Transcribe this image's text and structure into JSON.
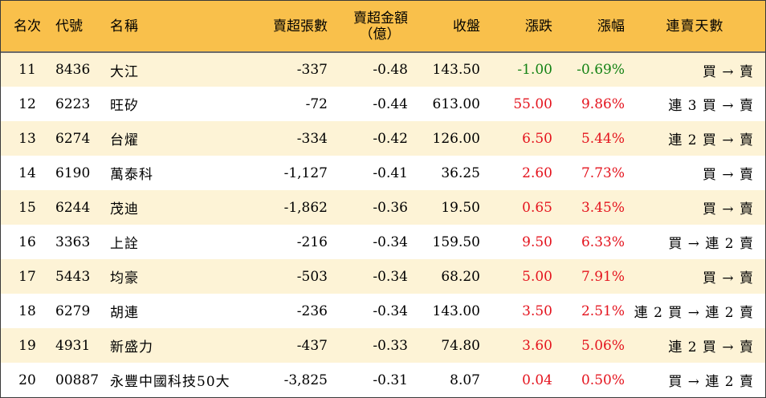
{
  "columns": {
    "rank": "名次",
    "code": "代號",
    "name": "名稱",
    "net_sell_lots": "賣超張數",
    "net_sell_amount": "賣超金額",
    "net_sell_amount_unit": "（億）",
    "close": "收盤",
    "change": "漲跌",
    "change_pct": "漲幅",
    "streak": "連賣天數"
  },
  "colors": {
    "header_bg": "#f9c04b",
    "odd_row_bg": "#fdf3d6",
    "even_row_bg": "#ffffff",
    "up": "#e4141e",
    "down": "#148214"
  },
  "rows": [
    {
      "rank": "11",
      "code": "8436",
      "name": "大江",
      "lots": "-337",
      "amount": "-0.48",
      "close": "143.50",
      "change": "-1.00",
      "pct": "-0.69%",
      "dir": "down",
      "streak": "買 → 賣"
    },
    {
      "rank": "12",
      "code": "6223",
      "name": "旺矽",
      "lots": "-72",
      "amount": "-0.44",
      "close": "613.00",
      "change": "55.00",
      "pct": "9.86%",
      "dir": "up",
      "streak": "連 3 買 → 賣"
    },
    {
      "rank": "13",
      "code": "6274",
      "name": "台燿",
      "lots": "-334",
      "amount": "-0.42",
      "close": "126.00",
      "change": "6.50",
      "pct": "5.44%",
      "dir": "up",
      "streak": "連 2 買 → 賣"
    },
    {
      "rank": "14",
      "code": "6190",
      "name": "萬泰科",
      "lots": "-1,127",
      "amount": "-0.41",
      "close": "36.25",
      "change": "2.60",
      "pct": "7.73%",
      "dir": "up",
      "streak": "買 → 賣"
    },
    {
      "rank": "15",
      "code": "6244",
      "name": "茂迪",
      "lots": "-1,862",
      "amount": "-0.36",
      "close": "19.50",
      "change": "0.65",
      "pct": "3.45%",
      "dir": "up",
      "streak": "買 → 賣"
    },
    {
      "rank": "16",
      "code": "3363",
      "name": "上詮",
      "lots": "-216",
      "amount": "-0.34",
      "close": "159.50",
      "change": "9.50",
      "pct": "6.33%",
      "dir": "up",
      "streak": "買 → 連 2 賣"
    },
    {
      "rank": "17",
      "code": "5443",
      "name": "均豪",
      "lots": "-503",
      "amount": "-0.34",
      "close": "68.20",
      "change": "5.00",
      "pct": "7.91%",
      "dir": "up",
      "streak": "買 → 賣"
    },
    {
      "rank": "18",
      "code": "6279",
      "name": "胡連",
      "lots": "-236",
      "amount": "-0.34",
      "close": "143.00",
      "change": "3.50",
      "pct": "2.51%",
      "dir": "up",
      "streak": "連 2 買 → 連 2 賣"
    },
    {
      "rank": "19",
      "code": "4931",
      "name": "新盛力",
      "lots": "-437",
      "amount": "-0.33",
      "close": "74.80",
      "change": "3.60",
      "pct": "5.06%",
      "dir": "up",
      "streak": "連 2 買 → 賣"
    },
    {
      "rank": "20",
      "code": "00887",
      "name": "永豐中國科技50大",
      "lots": "-3,825",
      "amount": "-0.31",
      "close": "8.07",
      "change": "0.04",
      "pct": "0.50%",
      "dir": "up",
      "streak": "買 → 連 2 賣"
    }
  ]
}
